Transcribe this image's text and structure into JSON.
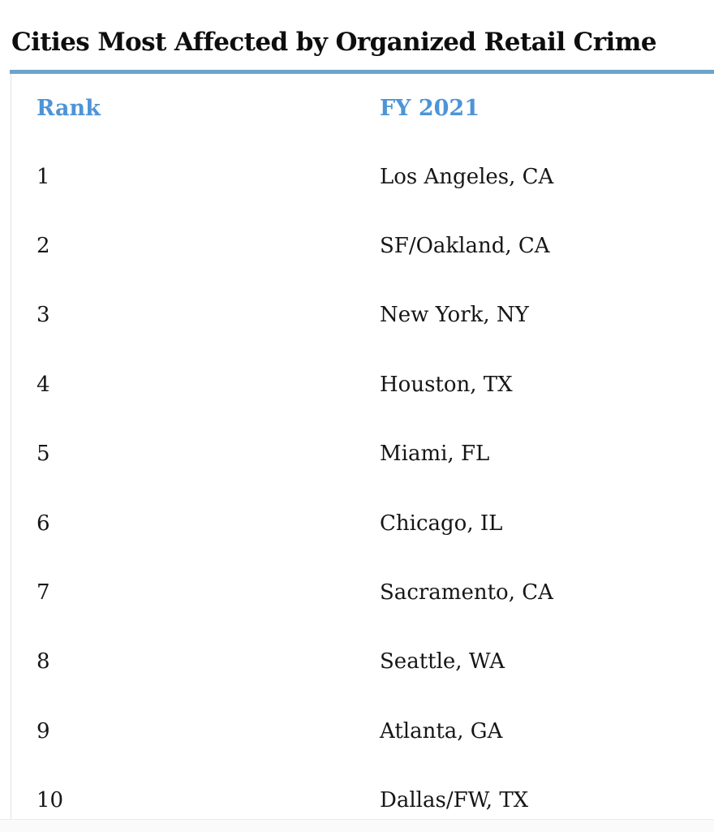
{
  "title": "Cities Most Affected by Organized Retail Crime",
  "table": {
    "header": {
      "rank": "Rank",
      "fy2021": "FY 2021"
    },
    "rows": [
      {
        "rank": "1",
        "city": "Los Angeles, CA"
      },
      {
        "rank": "2",
        "city": "SF/Oakland, CA"
      },
      {
        "rank": "3",
        "city": "New York, NY"
      },
      {
        "rank": "4",
        "city": "Houston, TX"
      },
      {
        "rank": "5",
        "city": "Miami, FL"
      },
      {
        "rank": "6",
        "city": "Chicago, IL"
      },
      {
        "rank": "7",
        "city": "Sacramento, CA"
      },
      {
        "rank": "8",
        "city": "Seattle, WA"
      },
      {
        "rank": "9",
        "city": "Atlanta, GA"
      },
      {
        "rank": "10",
        "city": "Dallas/FW, TX"
      }
    ]
  },
  "colors": {
    "header_text_blue": "#4d94d7",
    "top_rule_blue": "#6da4ca",
    "body_text": "#161616",
    "table_left_border": "#e3e3e3",
    "bottom_strip_bg": "#fafafa"
  },
  "chart_data": {
    "type": "table",
    "title": "Cities Most Affected by Organized Retail Crime",
    "columns": [
      "Rank",
      "FY 2021"
    ],
    "rows": [
      [
        1,
        "Los Angeles, CA"
      ],
      [
        2,
        "SF/Oakland, CA"
      ],
      [
        3,
        "New York, NY"
      ],
      [
        4,
        "Houston, TX"
      ],
      [
        5,
        "Miami, FL"
      ],
      [
        6,
        "Chicago, IL"
      ],
      [
        7,
        "Sacramento, CA"
      ],
      [
        8,
        "Seattle, WA"
      ],
      [
        9,
        "Atlanta, GA"
      ],
      [
        10,
        "Dallas/FW, TX"
      ]
    ]
  }
}
